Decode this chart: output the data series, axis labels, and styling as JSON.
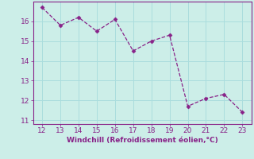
{
  "x": [
    12,
    13,
    14,
    15,
    16,
    17,
    18,
    19,
    20,
    21,
    22,
    23
  ],
  "y": [
    16.7,
    15.8,
    16.2,
    15.5,
    16.1,
    14.5,
    15.0,
    15.3,
    11.7,
    12.1,
    12.3,
    11.4
  ],
  "line_color": "#882288",
  "marker": "D",
  "marker_size": 2.5,
  "bg_color": "#cceee8",
  "grid_color": "#aadddd",
  "xlabel": "Windchill (Refroidissement éolien,°C)",
  "xlabel_color": "#882288",
  "tick_color": "#882288",
  "spine_color": "#882288",
  "xlim": [
    11.5,
    23.5
  ],
  "ylim": [
    10.8,
    17.0
  ],
  "xticks": [
    12,
    13,
    14,
    15,
    16,
    17,
    18,
    19,
    20,
    21,
    22,
    23
  ],
  "yticks": [
    11,
    12,
    13,
    14,
    15,
    16
  ]
}
